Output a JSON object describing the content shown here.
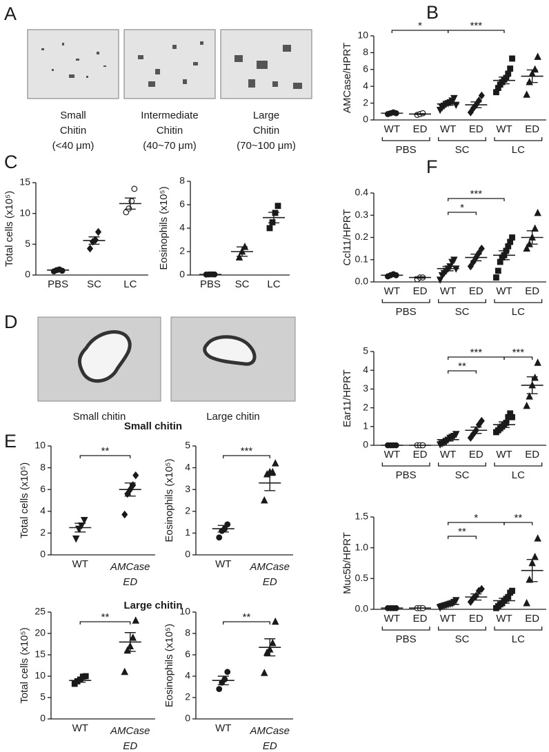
{
  "figure": {
    "panel_labels": [
      "A",
      "B",
      "C",
      "D",
      "E",
      "F"
    ],
    "panel_a_captions": [
      [
        "Small",
        "Chitin",
        "(<40 μm)"
      ],
      [
        "Intermediate",
        "Chitin",
        "(40~70 μm)"
      ],
      [
        "Large",
        "Chitin",
        "(70~100 μm)"
      ]
    ],
    "panel_d_captions": [
      "Small chitin",
      "Large chitin"
    ],
    "panel_e_titles": [
      "Small chitin",
      "Large chitin"
    ]
  },
  "chart_data": [
    {
      "type": "dotplot",
      "ylabel": "AMCase/HPRT",
      "ylim": [
        0,
        10
      ],
      "yticks": [
        0,
        2,
        4,
        6,
        8,
        10
      ],
      "color": "#1a1a1a",
      "categories": [
        {
          "name": "PBS",
          "groups": [
            {
              "name": "WT",
              "marker": "circle",
              "filled": true,
              "points": [
                0.7,
                0.8,
                0.9,
                0.8
              ],
              "mean": 0.8,
              "sem": 0.05
            },
            {
              "name": "ED",
              "marker": "circle",
              "filled": false,
              "points": [
                0.6,
                0.7,
                0.8
              ],
              "mean": 0.7,
              "sem": 0.05
            }
          ]
        },
        {
          "name": "SC",
          "groups": [
            {
              "name": "WT",
              "marker": "triangle-down",
              "filled": true,
              "points": [
                1.2,
                1.5,
                1.7,
                1.9,
                2.0,
                2.1,
                2.3,
                2.6,
                1.8
              ],
              "mean": 1.9,
              "sem": 0.15
            },
            {
              "name": "ED",
              "marker": "diamond",
              "filled": true,
              "points": [
                0.9,
                1.4,
                1.8,
                2.3,
                2.9
              ],
              "mean": 1.8,
              "sem": 0.35
            }
          ]
        },
        {
          "name": "LC",
          "groups": [
            {
              "name": "WT",
              "marker": "square",
              "filled": true,
              "points": [
                3.3,
                3.8,
                4.2,
                4.5,
                4.8,
                5.0,
                5.5,
                6.1,
                7.3
              ],
              "mean": 4.7,
              "sem": 0.4
            },
            {
              "name": "ED",
              "marker": "triangle-up",
              "filled": true,
              "points": [
                3.0,
                4.5,
                5.5,
                6.0,
                7.5
              ],
              "mean": 5.2,
              "sem": 0.75
            }
          ]
        }
      ],
      "comparisons": [
        {
          "label": "*",
          "from": [
            0,
            0
          ],
          "to": [
            1,
            0
          ]
        },
        {
          "label": "***",
          "from": [
            1,
            0
          ],
          "to": [
            2,
            0
          ]
        }
      ]
    },
    {
      "type": "dotplot",
      "ylabel": "Total cells (x10⁵)",
      "ylim": [
        0,
        15
      ],
      "yticks": [
        0,
        5,
        10,
        15
      ],
      "color": "#1a1a1a",
      "groups": [
        {
          "name": "PBS",
          "marker": "circle",
          "filled": true,
          "points": [
            0.6,
            0.8,
            0.9,
            0.7
          ],
          "mean": 0.8,
          "sem": 0.1
        },
        {
          "name": "SC",
          "marker": "diamond",
          "filled": true,
          "points": [
            4.3,
            5.4,
            5.7,
            7.0
          ],
          "mean": 5.6,
          "sem": 0.6
        },
        {
          "name": "LC",
          "marker": "circle",
          "filled": false,
          "points": [
            10.2,
            10.8,
            12.0,
            14.0
          ],
          "mean": 11.6,
          "sem": 0.9
        }
      ]
    },
    {
      "type": "dotplot",
      "ylabel": "Eosinophils (x10⁵)",
      "ylim": [
        0,
        8
      ],
      "yticks": [
        0,
        2,
        4,
        6,
        8
      ],
      "color": "#1a1a1a",
      "groups": [
        {
          "name": "PBS",
          "marker": "circle",
          "filled": true,
          "points": [
            0.04,
            0.05,
            0.06,
            0.05
          ],
          "mean": 0.05,
          "sem": 0.01
        },
        {
          "name": "SC",
          "marker": "triangle-up",
          "filled": true,
          "points": [
            1.5,
            2.0,
            2.4
          ],
          "mean": 2.0,
          "sem": 0.4
        },
        {
          "name": "LC",
          "marker": "square",
          "filled": true,
          "points": [
            4.0,
            4.5,
            5.3,
            5.9
          ],
          "mean": 4.9,
          "sem": 0.45
        }
      ]
    },
    {
      "type": "dotplot",
      "ylabel": "Total cells (x10⁵)",
      "ylim": [
        0,
        10
      ],
      "yticks": [
        0,
        2,
        4,
        6,
        8,
        10
      ],
      "color": "#1a1a1a",
      "groups": [
        {
          "name": "WT",
          "marker": "triangle-down",
          "filled": true,
          "points": [
            1.5,
            2.4,
            2.7,
            3.2
          ],
          "mean": 2.5,
          "sem": 0.4
        },
        {
          "name": [
            "AMCase",
            "ED"
          ],
          "italic": true,
          "marker": "diamond",
          "filled": true,
          "points": [
            3.7,
            5.6,
            6.0,
            6.4,
            7.3
          ],
          "mean": 6.0,
          "sem": 0.6
        }
      ],
      "comparisons": [
        {
          "label": "**",
          "from": 0,
          "to": 1
        }
      ]
    },
    {
      "type": "dotplot",
      "ylabel": "Eosinophils (x10⁵)",
      "ylim": [
        0,
        5
      ],
      "yticks": [
        0,
        1,
        2,
        3,
        4,
        5
      ],
      "color": "#1a1a1a",
      "groups": [
        {
          "name": "WT",
          "marker": "circle",
          "filled": true,
          "points": [
            0.8,
            1.1,
            1.2,
            1.4
          ],
          "mean": 1.2,
          "sem": 0.15
        },
        {
          "name": [
            "AMCase",
            "ED"
          ],
          "italic": true,
          "marker": "triangle-up",
          "filled": true,
          "points": [
            2.5,
            3.7,
            3.8,
            3.8,
            4.2
          ],
          "mean": 3.3,
          "sem": 0.35
        }
      ],
      "comparisons": [
        {
          "label": "***",
          "from": 0,
          "to": 1
        }
      ]
    },
    {
      "type": "dotplot",
      "ylabel": "Total cells (x10⁵)",
      "ylim": [
        0,
        25
      ],
      "yticks": [
        0,
        5,
        10,
        15,
        20,
        25
      ],
      "color": "#1a1a1a",
      "groups": [
        {
          "name": "WT",
          "marker": "square",
          "filled": true,
          "points": [
            8.2,
            8.8,
            9.2,
            9.9,
            10.0
          ],
          "mean": 9.0,
          "sem": 0.4
        },
        {
          "name": [
            "AMCase",
            "ED"
          ],
          "italic": true,
          "marker": "triangle-up",
          "filled": true,
          "points": [
            11,
            16,
            17,
            19,
            23
          ],
          "mean": 18,
          "sem": 2.2
        }
      ],
      "comparisons": [
        {
          "label": "**",
          "from": 0,
          "to": 1
        }
      ]
    },
    {
      "type": "dotplot",
      "ylabel": "Eosinophils (x10⁵)",
      "ylim": [
        0,
        10
      ],
      "yticks": [
        0,
        2,
        4,
        6,
        8,
        10
      ],
      "color": "#1a1a1a",
      "groups": [
        {
          "name": "WT",
          "marker": "circle",
          "filled": true,
          "points": [
            2.8,
            3.4,
            3.7,
            4.4
          ],
          "mean": 3.6,
          "sem": 0.4
        },
        {
          "name": [
            "AMCase",
            "ED"
          ],
          "italic": true,
          "marker": "triangle-up",
          "filled": true,
          "points": [
            4.3,
            6.2,
            6.5,
            7.1,
            9.1
          ],
          "mean": 6.7,
          "sem": 0.8
        }
      ],
      "comparisons": [
        {
          "label": "**",
          "from": 0,
          "to": 1
        }
      ]
    },
    {
      "type": "dotplot",
      "ylabel": "Ccl11/HPRT",
      "ylim": [
        0,
        0.4
      ],
      "yticks": [
        {
          "value": 0,
          "label": "0.0"
        },
        0.1,
        0.2,
        0.3,
        0.4
      ],
      "color": "#1a1a1a",
      "categories": [
        {
          "name": "PBS",
          "groups": [
            {
              "name": "WT",
              "marker": "circle",
              "filled": true,
              "points": [
                0.025,
                0.03,
                0.035,
                0.03
              ],
              "mean": 0.03,
              "sem": 0.003
            },
            {
              "name": "ED",
              "marker": "circle",
              "filled": false,
              "points": [
                0.012,
                0.02,
                0.02
              ],
              "mean": 0.02,
              "sem": 0.003
            }
          ]
        },
        {
          "name": "SC",
          "groups": [
            {
              "name": "WT",
              "marker": "triangle-down",
              "filled": true,
              "points": [
                0.01,
                0.03,
                0.04,
                0.05,
                0.06,
                0.07,
                0.09,
                0.1,
                0.06
              ],
              "mean": 0.06,
              "sem": 0.01
            },
            {
              "name": "ED",
              "marker": "diamond",
              "filled": true,
              "points": [
                0.07,
                0.09,
                0.11,
                0.13,
                0.15
              ],
              "mean": 0.11,
              "sem": 0.015
            }
          ]
        },
        {
          "name": "LC",
          "groups": [
            {
              "name": "WT",
              "marker": "square",
              "filled": true,
              "points": [
                0.02,
                0.05,
                0.09,
                0.11,
                0.12,
                0.14,
                0.16,
                0.18,
                0.2
              ],
              "mean": 0.12,
              "sem": 0.02
            },
            {
              "name": "ED",
              "marker": "triangle-up",
              "filled": true,
              "points": [
                0.15,
                0.17,
                0.2,
                0.24,
                0.31
              ],
              "mean": 0.2,
              "sem": 0.03
            }
          ]
        }
      ],
      "comparisons": [
        {
          "label": "*",
          "from": [
            1,
            0
          ],
          "to": [
            1,
            1
          ]
        },
        {
          "label": "***",
          "from": [
            1,
            0
          ],
          "to": [
            2,
            0
          ]
        }
      ]
    },
    {
      "type": "dotplot",
      "ylabel": "Ear11/HPRT",
      "ylim": [
        0,
        5
      ],
      "yticks": [
        0,
        1,
        2,
        3,
        4,
        5
      ],
      "color": "#1a1a1a",
      "categories": [
        {
          "name": "PBS",
          "groups": [
            {
              "name": "WT",
              "marker": "circle",
              "filled": true,
              "points": [
                0,
                0,
                0,
                0
              ],
              "mean": 0,
              "sem": 0
            },
            {
              "name": "ED",
              "marker": "circle",
              "filled": false,
              "points": [
                0,
                0,
                0
              ],
              "mean": 0,
              "sem": 0
            }
          ]
        },
        {
          "name": "SC",
          "groups": [
            {
              "name": "WT",
              "marker": "triangle-down",
              "filled": true,
              "points": [
                0.05,
                0.1,
                0.15,
                0.2,
                0.3,
                0.4,
                0.45,
                0.5,
                0.6
              ],
              "mean": 0.3,
              "sem": 0.07
            },
            {
              "name": "ED",
              "marker": "diamond",
              "filled": true,
              "points": [
                0.4,
                0.6,
                0.8,
                1.1,
                1.3
              ],
              "mean": 0.8,
              "sem": 0.17
            }
          ]
        },
        {
          "name": "LC",
          "groups": [
            {
              "name": "WT",
              "marker": "square",
              "filled": true,
              "points": [
                0.7,
                0.8,
                0.9,
                1.0,
                1.1,
                1.2,
                1.5,
                1.7,
                1.5
              ],
              "mean": 1.1,
              "sem": 0.15
            },
            {
              "name": "ED",
              "marker": "triangle-up",
              "filled": true,
              "points": [
                2.1,
                2.6,
                3.2,
                3.6,
                4.4
              ],
              "mean": 3.2,
              "sem": 0.45
            }
          ]
        }
      ],
      "comparisons": [
        {
          "label": "**",
          "from": [
            1,
            0
          ],
          "to": [
            1,
            1
          ]
        },
        {
          "label": "***",
          "from": [
            1,
            0
          ],
          "to": [
            2,
            0
          ]
        },
        {
          "label": "***",
          "from": [
            2,
            0
          ],
          "to": [
            2,
            1
          ]
        }
      ]
    },
    {
      "type": "dotplot",
      "ylabel": "Muc5b/HPRT",
      "ylim": [
        0,
        1.5
      ],
      "yticks": [
        {
          "value": 0,
          "label": "0.0"
        },
        0.5,
        {
          "value": 1,
          "label": "1.0"
        },
        1.5
      ],
      "color": "#1a1a1a",
      "categories": [
        {
          "name": "PBS",
          "groups": [
            {
              "name": "WT",
              "marker": "circle",
              "filled": true,
              "points": [
                0.02,
                0.02,
                0.02,
                0.02
              ],
              "mean": 0.02,
              "sem": 0.002
            },
            {
              "name": "ED",
              "marker": "circle",
              "filled": false,
              "points": [
                0.02,
                0.02,
                0.02
              ],
              "mean": 0.02,
              "sem": 0.002
            }
          ]
        },
        {
          "name": "SC",
          "groups": [
            {
              "name": "WT",
              "marker": "triangle-down",
              "filled": true,
              "points": [
                0.03,
                0.05,
                0.06,
                0.07,
                0.08,
                0.09,
                0.1,
                0.12,
                0.15
              ],
              "mean": 0.08,
              "sem": 0.02
            },
            {
              "name": "ED",
              "marker": "diamond",
              "filled": true,
              "points": [
                0.12,
                0.18,
                0.22,
                0.3,
                0.33
              ],
              "mean": 0.2,
              "sem": 0.05
            }
          ]
        },
        {
          "name": "LC",
          "groups": [
            {
              "name": "WT",
              "marker": "square",
              "filled": true,
              "points": [
                0.02,
                0.05,
                0.08,
                0.1,
                0.14,
                0.17,
                0.2,
                0.27,
                0.3
              ],
              "mean": 0.14,
              "sem": 0.04
            },
            {
              "name": "ED",
              "marker": "triangle-up",
              "filled": true,
              "points": [
                0.1,
                0.48,
                0.75,
                0.85,
                1.15
              ],
              "mean": 0.63,
              "sem": 0.18
            }
          ]
        }
      ],
      "comparisons": [
        {
          "label": "**",
          "from": [
            1,
            0
          ],
          "to": [
            1,
            1
          ]
        },
        {
          "label": "*",
          "from": [
            1,
            0
          ],
          "to": [
            2,
            0
          ]
        },
        {
          "label": "**",
          "from": [
            2,
            0
          ],
          "to": [
            2,
            1
          ]
        }
      ]
    }
  ]
}
